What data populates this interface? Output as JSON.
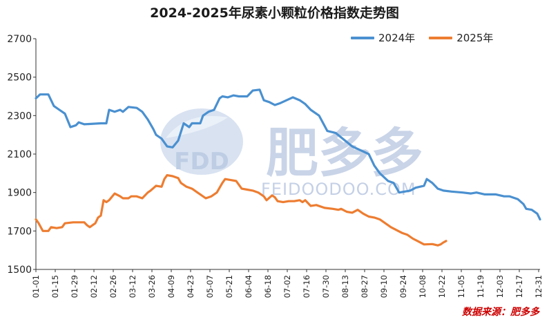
{
  "chart_data": {
    "type": "line",
    "title": "2024-2025年尿素小颗粒价格指数走势图",
    "xlabel": "",
    "ylabel": "",
    "ylim": [
      1500,
      2700
    ],
    "y_ticks": [
      1500,
      1700,
      1900,
      2100,
      2300,
      2500,
      2700
    ],
    "x_ticks": [
      "01-01",
      "01-15",
      "01-29",
      "02-12",
      "02-26",
      "03-12",
      "03-26",
      "04-09",
      "04-23",
      "05-07",
      "05-21",
      "06-04",
      "06-18",
      "07-02",
      "07-16",
      "07-30",
      "08-13",
      "08-27",
      "09-10",
      "09-24",
      "10-08",
      "10-22",
      "11-05",
      "11-19",
      "12-03",
      "12-17",
      "12-31"
    ],
    "x_unit": "day of year (1 = 01-01)",
    "grid": false,
    "legend": "top-right",
    "series": [
      {
        "name": "2024年",
        "color": "#4a90d0",
        "points": [
          [
            1,
            2390
          ],
          [
            4,
            2410
          ],
          [
            10,
            2410
          ],
          [
            14,
            2350
          ],
          [
            18,
            2330
          ],
          [
            22,
            2310
          ],
          [
            26,
            2240
          ],
          [
            30,
            2250
          ],
          [
            32,
            2265
          ],
          [
            36,
            2255
          ],
          [
            48,
            2260
          ],
          [
            52,
            2260
          ],
          [
            54,
            2330
          ],
          [
            58,
            2320
          ],
          [
            62,
            2330
          ],
          [
            64,
            2320
          ],
          [
            68,
            2345
          ],
          [
            74,
            2340
          ],
          [
            78,
            2320
          ],
          [
            82,
            2280
          ],
          [
            86,
            2230
          ],
          [
            88,
            2200
          ],
          [
            92,
            2180
          ],
          [
            96,
            2140
          ],
          [
            100,
            2135
          ],
          [
            104,
            2170
          ],
          [
            108,
            2260
          ],
          [
            112,
            2240
          ],
          [
            114,
            2260
          ],
          [
            120,
            2260
          ],
          [
            122,
            2300
          ],
          [
            126,
            2320
          ],
          [
            130,
            2330
          ],
          [
            134,
            2390
          ],
          [
            136,
            2400
          ],
          [
            140,
            2395
          ],
          [
            144,
            2405
          ],
          [
            148,
            2400
          ],
          [
            154,
            2400
          ],
          [
            158,
            2430
          ],
          [
            163,
            2435
          ],
          [
            166,
            2380
          ],
          [
            170,
            2370
          ],
          [
            174,
            2355
          ],
          [
            178,
            2365
          ],
          [
            184,
            2385
          ],
          [
            187,
            2395
          ],
          [
            192,
            2380
          ],
          [
            196,
            2360
          ],
          [
            200,
            2330
          ],
          [
            206,
            2300
          ],
          [
            212,
            2220
          ],
          [
            218,
            2210
          ],
          [
            224,
            2175
          ],
          [
            230,
            2140
          ],
          [
            236,
            2120
          ],
          [
            242,
            2100
          ],
          [
            246,
            2040
          ],
          [
            250,
            2000
          ],
          [
            256,
            1960
          ],
          [
            260,
            1950
          ],
          [
            264,
            1900
          ],
          [
            268,
            1905
          ],
          [
            272,
            1910
          ],
          [
            276,
            1925
          ],
          [
            282,
            1935
          ],
          [
            284,
            1970
          ],
          [
            288,
            1950
          ],
          [
            292,
            1920
          ],
          [
            296,
            1910
          ],
          [
            302,
            1905
          ],
          [
            310,
            1900
          ],
          [
            316,
            1895
          ],
          [
            320,
            1900
          ],
          [
            326,
            1890
          ],
          [
            334,
            1890
          ],
          [
            340,
            1880
          ],
          [
            344,
            1880
          ],
          [
            350,
            1865
          ],
          [
            354,
            1840
          ],
          [
            356,
            1815
          ],
          [
            360,
            1810
          ],
          [
            364,
            1790
          ],
          [
            366,
            1760
          ]
        ]
      },
      {
        "name": "2025年",
        "color": "#ed7d31",
        "points": [
          [
            1,
            1760
          ],
          [
            3,
            1740
          ],
          [
            6,
            1700
          ],
          [
            10,
            1700
          ],
          [
            12,
            1720
          ],
          [
            16,
            1715
          ],
          [
            20,
            1720
          ],
          [
            22,
            1740
          ],
          [
            28,
            1745
          ],
          [
            36,
            1745
          ],
          [
            38,
            1730
          ],
          [
            40,
            1720
          ],
          [
            44,
            1740
          ],
          [
            46,
            1770
          ],
          [
            48,
            1780
          ],
          [
            50,
            1860
          ],
          [
            52,
            1850
          ],
          [
            54,
            1860
          ],
          [
            58,
            1895
          ],
          [
            62,
            1880
          ],
          [
            64,
            1870
          ],
          [
            68,
            1870
          ],
          [
            70,
            1880
          ],
          [
            74,
            1880
          ],
          [
            78,
            1870
          ],
          [
            82,
            1900
          ],
          [
            84,
            1910
          ],
          [
            88,
            1935
          ],
          [
            92,
            1930
          ],
          [
            94,
            1970
          ],
          [
            96,
            1990
          ],
          [
            100,
            1985
          ],
          [
            104,
            1975
          ],
          [
            106,
            1950
          ],
          [
            110,
            1930
          ],
          [
            114,
            1920
          ],
          [
            118,
            1900
          ],
          [
            120,
            1890
          ],
          [
            124,
            1870
          ],
          [
            128,
            1880
          ],
          [
            132,
            1900
          ],
          [
            136,
            1950
          ],
          [
            138,
            1970
          ],
          [
            142,
            1965
          ],
          [
            146,
            1960
          ],
          [
            150,
            1920
          ],
          [
            154,
            1915
          ],
          [
            158,
            1910
          ],
          [
            162,
            1900
          ],
          [
            166,
            1880
          ],
          [
            168,
            1860
          ],
          [
            172,
            1885
          ],
          [
            174,
            1875
          ],
          [
            176,
            1855
          ],
          [
            180,
            1850
          ],
          [
            184,
            1855
          ],
          [
            188,
            1855
          ],
          [
            192,
            1860
          ],
          [
            194,
            1850
          ],
          [
            196,
            1860
          ],
          [
            198,
            1845
          ],
          [
            200,
            1830
          ],
          [
            204,
            1835
          ],
          [
            210,
            1820
          ],
          [
            216,
            1815
          ],
          [
            220,
            1810
          ],
          [
            222,
            1815
          ],
          [
            226,
            1800
          ],
          [
            230,
            1795
          ],
          [
            234,
            1810
          ],
          [
            238,
            1790
          ],
          [
            242,
            1775
          ],
          [
            246,
            1770
          ],
          [
            250,
            1760
          ],
          [
            254,
            1740
          ],
          [
            258,
            1720
          ],
          [
            262,
            1705
          ],
          [
            266,
            1690
          ],
          [
            270,
            1680
          ],
          [
            274,
            1660
          ],
          [
            278,
            1645
          ],
          [
            282,
            1630
          ],
          [
            288,
            1632
          ],
          [
            292,
            1625
          ],
          [
            294,
            1630
          ],
          [
            296,
            1640
          ],
          [
            298,
            1648
          ]
        ]
      }
    ]
  },
  "source_note": "数据来源：肥多多",
  "watermark": {
    "logo_text": "FDD",
    "brand_cn": "肥多多",
    "brand_en": "FEIDOODOO.COM"
  }
}
